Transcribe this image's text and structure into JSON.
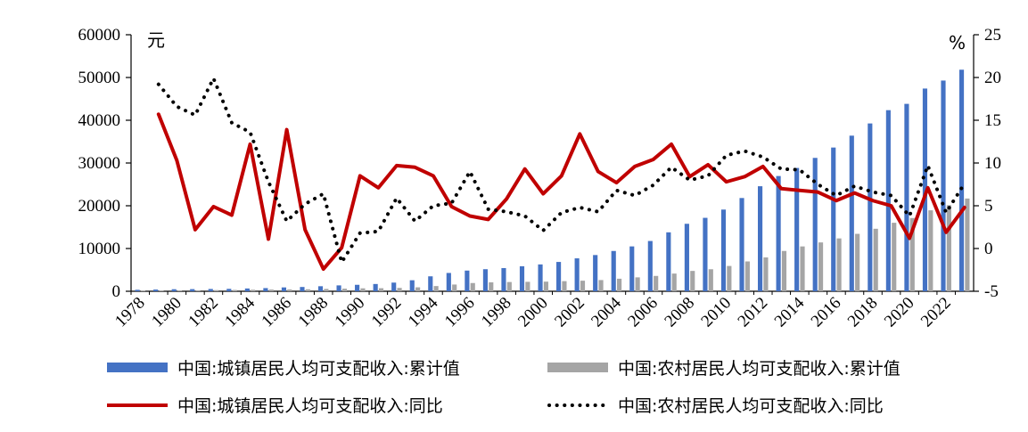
{
  "chart_data": {
    "type": "bar+line",
    "title": "",
    "left_unit": "元",
    "right_unit": "%",
    "y_left": {
      "min": 0,
      "max": 60000,
      "ticks": [
        "0",
        "10000",
        "20000",
        "30000",
        "40000",
        "50000",
        "60000"
      ]
    },
    "y_right": {
      "min": -5,
      "max": 25,
      "ticks": [
        "-5",
        "0",
        "5",
        "10",
        "15",
        "20",
        "25"
      ]
    },
    "x_labels": [
      "1978",
      "1980",
      "1982",
      "1984",
      "1986",
      "1988",
      "1990",
      "1992",
      "1994",
      "1996",
      "1998",
      "2000",
      "2002",
      "2004",
      "2006",
      "2008",
      "2010",
      "2012",
      "2014",
      "2016",
      "2018",
      "2020",
      "2022"
    ],
    "years": [
      1978,
      1979,
      1980,
      1981,
      1982,
      1983,
      1984,
      1985,
      1986,
      1987,
      1988,
      1989,
      1990,
      1991,
      1992,
      1993,
      1994,
      1995,
      1996,
      1997,
      1998,
      1999,
      2000,
      2001,
      2002,
      2003,
      2004,
      2005,
      2006,
      2007,
      2008,
      2009,
      2010,
      2011,
      2012,
      2013,
      2014,
      2015,
      2016,
      2017,
      2018,
      2019,
      2020,
      2021,
      2022,
      2023
    ],
    "series": [
      {
        "name": "中国:城镇居民人均可支配收入:累计值",
        "kind": "bar",
        "axis": "left",
        "color": "#4472C4",
        "values": [
          343,
          405,
          478,
          500,
          535,
          565,
          652,
          739,
          900,
          1002,
          1180,
          1374,
          1510,
          1701,
          2027,
          2577,
          3496,
          4283,
          4839,
          5160,
          5425,
          5854,
          6280,
          6860,
          7703,
          8472,
          9422,
          10493,
          11759,
          13786,
          15781,
          17175,
          19109,
          21810,
          24565,
          26955,
          28844,
          31195,
          33616,
          36396,
          39251,
          42359,
          43834,
          47412,
          49283,
          51821
        ]
      },
      {
        "name": "中国:农村居民人均可支配收入:累计值",
        "kind": "bar",
        "axis": "left",
        "color": "#A5A5A5",
        "values": [
          134,
          160,
          191,
          223,
          270,
          310,
          355,
          398,
          424,
          463,
          545,
          602,
          686,
          709,
          784,
          922,
          1221,
          1578,
          1926,
          2090,
          2162,
          2210,
          2253,
          2366,
          2476,
          2622,
          2936,
          3255,
          3587,
          4140,
          4761,
          5153,
          5919,
          6977,
          7917,
          9430,
          10489,
          11422,
          12363,
          13432,
          14617,
          16021,
          17131,
          18931,
          20133,
          21691
        ]
      },
      {
        "name": "中国:城镇居民人均可支配收入:同比",
        "kind": "line",
        "axis": "right",
        "color": "#C00000",
        "style": "solid",
        "values": [
          null,
          15.7,
          10.3,
          2.2,
          4.9,
          3.9,
          12.2,
          1.1,
          13.9,
          2.2,
          -2.4,
          0.1,
          8.5,
          7.1,
          9.7,
          9.5,
          8.5,
          4.9,
          3.8,
          3.4,
          5.8,
          9.3,
          6.4,
          8.5,
          13.4,
          9.0,
          7.7,
          9.6,
          10.4,
          12.2,
          8.4,
          9.8,
          7.8,
          8.4,
          9.6,
          7.0,
          6.8,
          6.6,
          5.6,
          6.5,
          5.6,
          5.0,
          1.2,
          7.1,
          1.9,
          4.8
        ]
      },
      {
        "name": "中国:农村居民人均可支配收入:同比",
        "kind": "line",
        "axis": "right",
        "color": "#000000",
        "style": "dotted",
        "values": [
          null,
          19.2,
          16.6,
          15.6,
          19.9,
          14.7,
          13.6,
          7.8,
          3.2,
          5.2,
          6.4,
          -1.6,
          1.8,
          2.0,
          5.9,
          3.2,
          5.0,
          5.3,
          9.0,
          4.6,
          4.3,
          3.8,
          2.1,
          4.2,
          4.8,
          4.3,
          6.8,
          6.2,
          7.4,
          9.5,
          8.0,
          8.5,
          10.9,
          11.4,
          10.7,
          9.3,
          9.2,
          7.5,
          6.2,
          7.3,
          6.6,
          6.2,
          3.8,
          9.7,
          4.2,
          7.6
        ]
      }
    ],
    "legend_position": "bottom",
    "grid": false
  }
}
